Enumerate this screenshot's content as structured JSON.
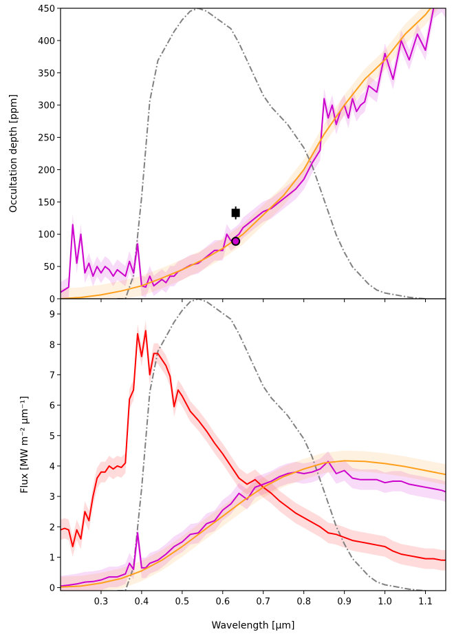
{
  "chart_data": [
    {
      "type": "line",
      "panel": "top",
      "ylabel": "Occultation depth [ppm]",
      "xlim": [
        0.2,
        1.15
      ],
      "ylim": [
        0,
        450
      ],
      "yticks": [
        0,
        50,
        100,
        150,
        200,
        250,
        300,
        350,
        400,
        450
      ],
      "grid": false,
      "series": [
        {
          "color": "#cc00cc",
          "x": [
            0.2,
            0.22,
            0.23,
            0.24,
            0.25,
            0.26,
            0.27,
            0.28,
            0.29,
            0.3,
            0.31,
            0.32,
            0.33,
            0.34,
            0.35,
            0.36,
            0.37,
            0.38,
            0.39,
            0.4,
            0.41,
            0.42,
            0.43,
            0.44,
            0.45,
            0.46,
            0.47,
            0.48,
            0.49,
            0.5,
            0.52,
            0.54,
            0.56,
            0.58,
            0.6,
            0.61,
            0.62,
            0.63,
            0.64,
            0.65,
            0.66,
            0.68,
            0.7,
            0.72,
            0.74,
            0.76,
            0.78,
            0.8,
            0.82,
            0.84,
            0.85,
            0.86,
            0.87,
            0.88,
            0.89,
            0.9,
            0.91,
            0.92,
            0.93,
            0.94,
            0.95,
            0.96,
            0.98,
            1.0,
            1.02,
            1.04,
            1.06,
            1.08,
            1.1,
            1.12,
            1.14,
            1.15
          ],
          "y": [
            10,
            18,
            115,
            55,
            100,
            40,
            55,
            35,
            50,
            40,
            50,
            45,
            35,
            45,
            40,
            35,
            58,
            40,
            85,
            20,
            18,
            35,
            20,
            25,
            30,
            25,
            35,
            35,
            42,
            45,
            52,
            55,
            65,
            75,
            75,
            100,
            90,
            95,
            100,
            110,
            115,
            125,
            135,
            140,
            150,
            160,
            170,
            185,
            210,
            230,
            310,
            280,
            300,
            270,
            290,
            300,
            280,
            310,
            290,
            300,
            305,
            330,
            320,
            380,
            340,
            400,
            370,
            410,
            385,
            450,
            460,
            450
          ]
        },
        {
          "color": "#ff9f1a",
          "x": [
            0.2,
            0.25,
            0.3,
            0.35,
            0.4,
            0.45,
            0.5,
            0.55,
            0.6,
            0.65,
            0.7,
            0.75,
            0.8,
            0.85,
            0.9,
            0.95,
            1.0,
            1.05,
            1.1,
            1.15
          ],
          "y": [
            0,
            2,
            6,
            12,
            20,
            32,
            45,
            60,
            78,
            100,
            130,
            160,
            200,
            255,
            300,
            340,
            370,
            410,
            440,
            480
          ]
        }
      ],
      "points": [
        {
          "x": 0.632,
          "y": 133,
          "yerr": 10,
          "marker": "square",
          "color": "#000000"
        },
        {
          "x": 0.632,
          "y": 89,
          "yerr": 6,
          "marker": "circle",
          "color": "#cc00cc"
        }
      ],
      "filter_curve": {
        "color": "#808080",
        "x": [
          0.34,
          0.36,
          0.38,
          0.4,
          0.42,
          0.44,
          0.46,
          0.48,
          0.5,
          0.52,
          0.54,
          0.56,
          0.58,
          0.6,
          0.62,
          0.64,
          0.66,
          0.68,
          0.7,
          0.72,
          0.74,
          0.76,
          0.78,
          0.8,
          0.82,
          0.84,
          0.86,
          0.88,
          0.9,
          0.92,
          0.94,
          0.96,
          0.98,
          1.0,
          1.02,
          1.04,
          1.06,
          1.08,
          1.1
        ],
        "y": [
          0,
          0,
          0.08,
          0.35,
          0.68,
          0.82,
          0.87,
          0.92,
          0.96,
          0.99,
          1.0,
          0.99,
          0.97,
          0.95,
          0.93,
          0.88,
          0.82,
          0.76,
          0.7,
          0.66,
          0.63,
          0.6,
          0.56,
          0.52,
          0.46,
          0.38,
          0.3,
          0.22,
          0.16,
          0.11,
          0.08,
          0.05,
          0.03,
          0.02,
          0.015,
          0.01,
          0.005,
          0.002,
          0
        ]
      }
    },
    {
      "type": "line",
      "panel": "bottom",
      "xlabel": "Wavelength [μm]",
      "ylabel": "Flux [MW m⁻² μm⁻¹]",
      "xlim": [
        0.2,
        1.15
      ],
      "ylim": [
        -0.1,
        9.5
      ],
      "xticks": [
        0.3,
        0.4,
        0.5,
        0.6,
        0.7,
        0.8,
        0.9,
        1.0,
        1.1
      ],
      "yticks": [
        0,
        1,
        2,
        3,
        4,
        5,
        6,
        7,
        8,
        9
      ],
      "grid": false,
      "series": [
        {
          "color": "#ff0000",
          "x": [
            0.2,
            0.21,
            0.22,
            0.23,
            0.24,
            0.25,
            0.26,
            0.27,
            0.28,
            0.29,
            0.3,
            0.31,
            0.32,
            0.33,
            0.34,
            0.35,
            0.36,
            0.37,
            0.38,
            0.39,
            0.4,
            0.41,
            0.42,
            0.43,
            0.44,
            0.45,
            0.46,
            0.47,
            0.48,
            0.49,
            0.5,
            0.52,
            0.54,
            0.56,
            0.58,
            0.6,
            0.62,
            0.64,
            0.66,
            0.68,
            0.7,
            0.72,
            0.74,
            0.76,
            0.78,
            0.8,
            0.82,
            0.84,
            0.86,
            0.88,
            0.9,
            0.92,
            0.94,
            0.96,
            0.98,
            1.0,
            1.02,
            1.04,
            1.06,
            1.08,
            1.1,
            1.12,
            1.14,
            1.15
          ],
          "y": [
            1.9,
            1.95,
            1.9,
            1.35,
            1.9,
            1.6,
            2.5,
            2.2,
            3.0,
            3.6,
            3.8,
            3.8,
            4.0,
            3.9,
            4.0,
            3.95,
            4.1,
            6.2,
            6.5,
            8.35,
            7.6,
            8.45,
            7.0,
            7.7,
            7.7,
            7.5,
            7.3,
            6.95,
            5.95,
            6.5,
            6.3,
            5.8,
            5.5,
            5.15,
            4.75,
            4.4,
            4.0,
            3.6,
            3.4,
            3.55,
            3.3,
            3.1,
            2.85,
            2.65,
            2.45,
            2.3,
            2.15,
            2.0,
            1.8,
            1.75,
            1.65,
            1.55,
            1.5,
            1.45,
            1.4,
            1.35,
            1.2,
            1.1,
            1.05,
            1.0,
            0.95,
            0.95,
            0.9,
            0.9
          ]
        },
        {
          "color": "#cc00cc",
          "x": [
            0.2,
            0.22,
            0.24,
            0.26,
            0.28,
            0.3,
            0.32,
            0.34,
            0.36,
            0.37,
            0.38,
            0.39,
            0.4,
            0.41,
            0.42,
            0.44,
            0.46,
            0.48,
            0.5,
            0.52,
            0.54,
            0.56,
            0.58,
            0.6,
            0.62,
            0.64,
            0.66,
            0.68,
            0.7,
            0.72,
            0.74,
            0.76,
            0.78,
            0.8,
            0.82,
            0.84,
            0.86,
            0.88,
            0.9,
            0.92,
            0.94,
            0.96,
            0.98,
            1.0,
            1.02,
            1.04,
            1.06,
            1.08,
            1.1,
            1.12,
            1.14,
            1.15
          ],
          "y": [
            0.05,
            0.08,
            0.12,
            0.18,
            0.2,
            0.25,
            0.35,
            0.35,
            0.45,
            0.8,
            0.6,
            1.8,
            0.65,
            0.65,
            0.8,
            0.9,
            1.1,
            1.35,
            1.5,
            1.75,
            1.8,
            2.1,
            2.2,
            2.55,
            2.75,
            3.1,
            2.9,
            3.3,
            3.4,
            3.5,
            3.65,
            3.75,
            3.8,
            3.75,
            3.8,
            3.9,
            4.15,
            3.75,
            3.85,
            3.6,
            3.55,
            3.55,
            3.55,
            3.45,
            3.5,
            3.5,
            3.4,
            3.35,
            3.3,
            3.25,
            3.2,
            3.15
          ]
        },
        {
          "color": "#ff9f1a",
          "x": [
            0.2,
            0.25,
            0.3,
            0.35,
            0.4,
            0.45,
            0.5,
            0.55,
            0.6,
            0.65,
            0.7,
            0.75,
            0.8,
            0.85,
            0.9,
            0.95,
            1.0,
            1.05,
            1.1,
            1.15
          ],
          "y": [
            0.02,
            0.05,
            0.15,
            0.3,
            0.55,
            0.9,
            1.35,
            1.85,
            2.35,
            2.85,
            3.3,
            3.65,
            3.9,
            4.1,
            4.17,
            4.15,
            4.08,
            3.98,
            3.85,
            3.72
          ]
        }
      ],
      "filter_curve": {
        "color": "#808080",
        "x": [
          0.34,
          0.36,
          0.38,
          0.4,
          0.42,
          0.44,
          0.46,
          0.48,
          0.5,
          0.52,
          0.54,
          0.56,
          0.58,
          0.6,
          0.62,
          0.64,
          0.66,
          0.68,
          0.7,
          0.72,
          0.74,
          0.76,
          0.78,
          0.8,
          0.82,
          0.84,
          0.86,
          0.88,
          0.9,
          0.92,
          0.94,
          0.96,
          0.98,
          1.0,
          1.02,
          1.04,
          1.06,
          1.08,
          1.1
        ],
        "y": [
          0,
          0,
          0.08,
          0.35,
          0.68,
          0.82,
          0.87,
          0.92,
          0.96,
          0.99,
          1.0,
          0.99,
          0.97,
          0.95,
          0.93,
          0.88,
          0.82,
          0.76,
          0.7,
          0.66,
          0.63,
          0.6,
          0.56,
          0.52,
          0.46,
          0.38,
          0.3,
          0.22,
          0.16,
          0.11,
          0.08,
          0.05,
          0.03,
          0.02,
          0.015,
          0.01,
          0.005,
          0.002,
          0
        ]
      }
    }
  ]
}
